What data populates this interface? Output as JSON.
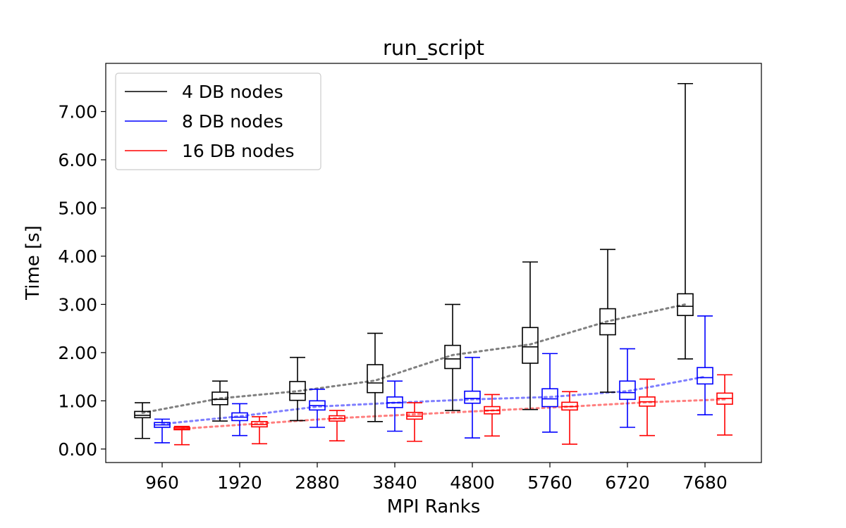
{
  "chart_data": {
    "type": "box",
    "title": "run_script",
    "xlabel": "MPI Ranks",
    "ylabel": "Time [s]",
    "categories": [
      "960",
      "1920",
      "2880",
      "3840",
      "4800",
      "5760",
      "6720",
      "7680"
    ],
    "ylim": [
      -0.28,
      8.0
    ],
    "yticks": [
      "0.00",
      "1.00",
      "2.00",
      "3.00",
      "4.00",
      "5.00",
      "6.00",
      "7.00"
    ],
    "legend_position": "top-left",
    "grid": false,
    "series": [
      {
        "name": "4 DB nodes",
        "color": "#000000",
        "trend_color": "#808080",
        "boxes": [
          {
            "min": 0.22,
            "q1": 0.65,
            "median": 0.7,
            "q3": 0.78,
            "max": 0.96,
            "mean": 0.75
          },
          {
            "min": 0.58,
            "q1": 0.92,
            "median": 1.03,
            "q3": 1.18,
            "max": 1.41,
            "mean": 1.05
          },
          {
            "min": 0.59,
            "q1": 1.01,
            "median": 1.15,
            "q3": 1.4,
            "max": 1.9,
            "mean": 1.2
          },
          {
            "min": 0.57,
            "q1": 1.17,
            "median": 1.37,
            "q3": 1.75,
            "max": 2.4,
            "mean": 1.42
          },
          {
            "min": 0.8,
            "q1": 1.67,
            "median": 1.87,
            "q3": 2.15,
            "max": 3.0,
            "mean": 1.95
          },
          {
            "min": 0.82,
            "q1": 1.78,
            "median": 2.12,
            "q3": 2.52,
            "max": 3.88,
            "mean": 2.17
          },
          {
            "min": 1.18,
            "q1": 2.37,
            "median": 2.6,
            "q3": 2.91,
            "max": 4.14,
            "mean": 2.65
          },
          {
            "min": 1.87,
            "q1": 2.77,
            "median": 2.96,
            "q3": 3.22,
            "max": 7.58,
            "mean": 3.0
          }
        ]
      },
      {
        "name": "8 DB nodes",
        "color": "#0000ff",
        "trend_color": "#7f7fff",
        "boxes": [
          {
            "min": 0.13,
            "q1": 0.45,
            "median": 0.5,
            "q3": 0.55,
            "max": 0.62,
            "mean": 0.52
          },
          {
            "min": 0.28,
            "q1": 0.59,
            "median": 0.66,
            "q3": 0.75,
            "max": 0.94,
            "mean": 0.68
          },
          {
            "min": 0.45,
            "q1": 0.81,
            "median": 0.9,
            "q3": 1.0,
            "max": 1.24,
            "mean": 0.88
          },
          {
            "min": 0.37,
            "q1": 0.86,
            "median": 0.96,
            "q3": 1.08,
            "max": 1.41,
            "mean": 0.96
          },
          {
            "min": 0.23,
            "q1": 0.95,
            "median": 1.05,
            "q3": 1.2,
            "max": 1.9,
            "mean": 1.03
          },
          {
            "min": 0.35,
            "q1": 0.88,
            "median": 1.04,
            "q3": 1.25,
            "max": 1.98,
            "mean": 1.08
          },
          {
            "min": 0.45,
            "q1": 1.03,
            "median": 1.17,
            "q3": 1.41,
            "max": 2.08,
            "mean": 1.2
          },
          {
            "min": 0.71,
            "q1": 1.35,
            "median": 1.48,
            "q3": 1.69,
            "max": 2.76,
            "mean": 1.5
          }
        ]
      },
      {
        "name": "16 DB nodes",
        "color": "#ff0000",
        "trend_color": "#ff7f7f",
        "boxes": [
          {
            "min": 0.09,
            "q1": 0.4,
            "median": 0.42,
            "q3": 0.45,
            "max": 0.47,
            "mean": 0.42
          },
          {
            "min": 0.11,
            "q1": 0.46,
            "median": 0.51,
            "q3": 0.57,
            "max": 0.67,
            "mean": 0.53
          },
          {
            "min": 0.17,
            "q1": 0.58,
            "median": 0.63,
            "q3": 0.69,
            "max": 0.8,
            "mean": 0.64
          },
          {
            "min": 0.16,
            "q1": 0.62,
            "median": 0.68,
            "q3": 0.76,
            "max": 0.96,
            "mean": 0.72
          },
          {
            "min": 0.27,
            "q1": 0.73,
            "median": 0.8,
            "q3": 0.88,
            "max": 1.13,
            "mean": 0.8
          },
          {
            "min": 0.1,
            "q1": 0.81,
            "median": 0.88,
            "q3": 0.97,
            "max": 1.19,
            "mean": 0.88
          },
          {
            "min": 0.28,
            "q1": 0.89,
            "median": 0.98,
            "q3": 1.08,
            "max": 1.45,
            "mean": 0.97
          },
          {
            "min": 0.29,
            "q1": 0.93,
            "median": 1.05,
            "q3": 1.16,
            "max": 1.54,
            "mean": 1.03
          }
        ]
      }
    ]
  }
}
